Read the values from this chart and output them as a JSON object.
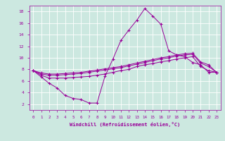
{
  "xlabel": "Windchill (Refroidissement éolien,°C)",
  "ylabel": "",
  "bg_color": "#cce8e0",
  "grid_color": "#ffffff",
  "line_color": "#990099",
  "text_color": "#990099",
  "xlim": [
    -0.5,
    23.5
  ],
  "ylim": [
    1,
    19
  ],
  "xticks": [
    0,
    1,
    2,
    3,
    4,
    5,
    6,
    7,
    8,
    9,
    10,
    11,
    12,
    13,
    14,
    15,
    16,
    17,
    18,
    19,
    20,
    21,
    22,
    23
  ],
  "yticks": [
    2,
    4,
    6,
    8,
    10,
    12,
    14,
    16,
    18
  ],
  "series": [
    {
      "x": [
        0,
        1,
        2,
        3,
        4,
        5,
        6,
        7,
        8,
        9,
        10,
        11,
        12,
        13,
        14,
        15,
        16,
        17,
        18,
        19,
        20,
        21,
        22,
        23
      ],
      "y": [
        7.8,
        6.7,
        5.6,
        4.8,
        3.5,
        3.0,
        2.8,
        2.2,
        2.2,
        6.8,
        9.8,
        13.0,
        14.8,
        16.5,
        18.5,
        17.2,
        15.8,
        11.2,
        10.5,
        10.2,
        9.2,
        8.8,
        7.5,
        7.5
      ]
    },
    {
      "x": [
        0,
        1,
        2,
        3,
        4,
        5,
        6,
        7,
        8,
        9,
        10,
        11,
        12,
        13,
        14,
        15,
        16,
        17,
        18,
        19,
        20,
        21,
        22,
        23
      ],
      "y": [
        7.8,
        7.0,
        6.5,
        6.5,
        6.5,
        6.6,
        6.7,
        6.8,
        7.0,
        7.2,
        7.5,
        7.8,
        8.0,
        8.5,
        8.8,
        9.0,
        9.3,
        9.5,
        9.8,
        10.0,
        10.2,
        8.5,
        7.8,
        7.5
      ]
    },
    {
      "x": [
        0,
        1,
        2,
        3,
        4,
        5,
        6,
        7,
        8,
        9,
        10,
        11,
        12,
        13,
        14,
        15,
        16,
        17,
        18,
        19,
        20,
        21,
        22,
        23
      ],
      "y": [
        7.8,
        7.2,
        7.0,
        7.0,
        7.1,
        7.2,
        7.3,
        7.5,
        7.7,
        7.9,
        8.1,
        8.3,
        8.6,
        8.9,
        9.2,
        9.5,
        9.8,
        10.0,
        10.3,
        10.5,
        10.6,
        9.1,
        8.5,
        7.5
      ]
    },
    {
      "x": [
        0,
        1,
        2,
        3,
        4,
        5,
        6,
        7,
        8,
        9,
        10,
        11,
        12,
        13,
        14,
        15,
        16,
        17,
        18,
        19,
        20,
        21,
        22,
        23
      ],
      "y": [
        7.8,
        7.4,
        7.2,
        7.2,
        7.3,
        7.4,
        7.5,
        7.7,
        7.9,
        8.1,
        8.3,
        8.5,
        8.8,
        9.1,
        9.4,
        9.7,
        10.0,
        10.2,
        10.5,
        10.7,
        10.8,
        9.3,
        8.8,
        7.5
      ]
    }
  ]
}
